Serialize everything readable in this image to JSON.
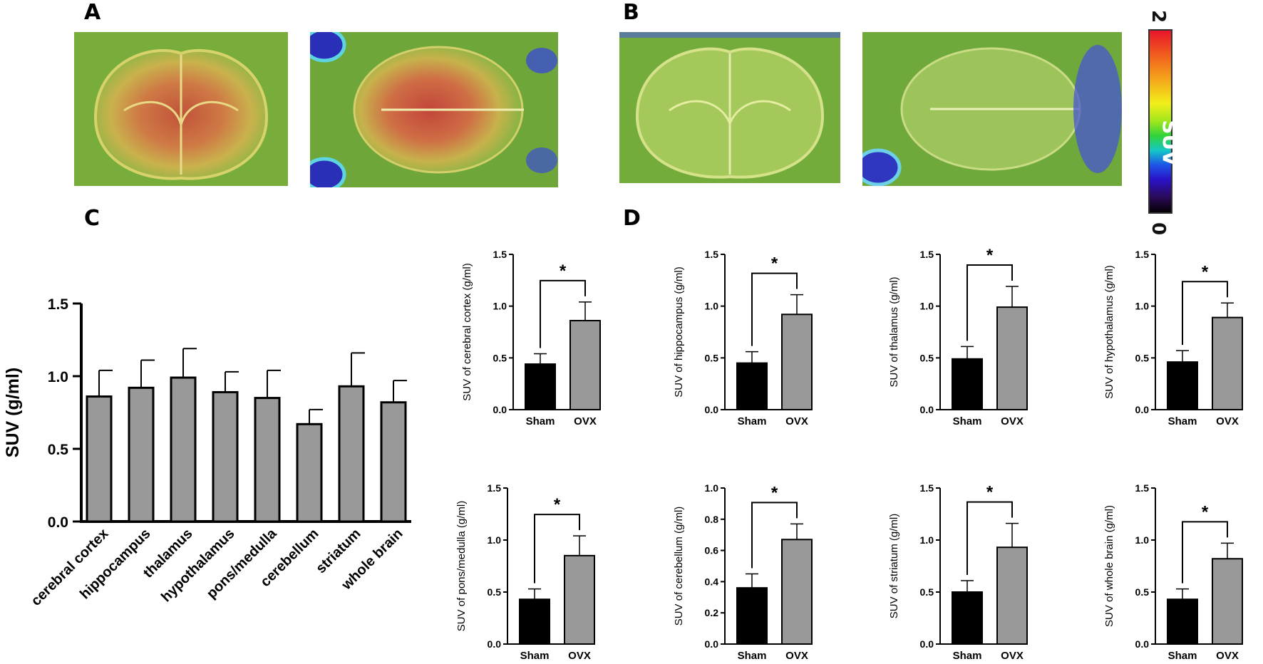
{
  "panels": {
    "a": "A",
    "b": "B",
    "c": "C",
    "d": "D"
  },
  "colorbar": {
    "max_label": "2",
    "min_label": "0",
    "title": "SUV",
    "colors": [
      "#e8152b",
      "#f5a11b",
      "#f3ef1a",
      "#2fd33a",
      "#1d55e6",
      "#2a0a55",
      "#050005"
    ]
  },
  "bar_colors": {
    "sham": "#000000",
    "ovx": "#999999"
  },
  "chart_data": [
    {
      "type": "bar",
      "panel": "C",
      "categories": [
        "cerebral cortex",
        "hippocampus",
        "thalamus",
        "hypothalamus",
        "pons/medulla",
        "cerebellum",
        "striatum",
        "whole brain"
      ],
      "values": [
        0.86,
        0.92,
        0.99,
        0.89,
        0.85,
        0.67,
        0.93,
        0.82
      ],
      "errors": [
        0.18,
        0.19,
        0.2,
        0.14,
        0.19,
        0.1,
        0.23,
        0.15
      ],
      "ylabel": "SUV  (g/ml)",
      "ylim": [
        0,
        1.5
      ],
      "yticks": [
        "0.0",
        "0.5",
        "1.0",
        "1.5"
      ]
    },
    {
      "type": "bar",
      "panel": "D",
      "categories": [
        "Sham",
        "OVX"
      ],
      "values": [
        0.44,
        0.86
      ],
      "errors": [
        0.1,
        0.18
      ],
      "ylabel": "SUV of  cerebral cortex (g/ml)",
      "ylim": [
        0,
        1.5
      ],
      "yticks": [
        "0.0",
        "0.5",
        "1.0",
        "1.5"
      ],
      "significance": "*"
    },
    {
      "type": "bar",
      "panel": "D",
      "categories": [
        "Sham",
        "OVX"
      ],
      "values": [
        0.45,
        0.92
      ],
      "errors": [
        0.11,
        0.19
      ],
      "ylabel": "SUV of  hippocampus (g/ml)",
      "ylim": [
        0,
        1.5
      ],
      "yticks": [
        "0.0",
        "0.5",
        "1.0",
        "1.5"
      ],
      "significance": "*"
    },
    {
      "type": "bar",
      "panel": "D",
      "categories": [
        "Sham",
        "OVX"
      ],
      "values": [
        0.49,
        0.99
      ],
      "errors": [
        0.12,
        0.2
      ],
      "ylabel": "SUV of  thalamus (g/ml)",
      "ylim": [
        0,
        1.5
      ],
      "yticks": [
        "0.0",
        "0.5",
        "1.0",
        "1.5"
      ],
      "significance": "*"
    },
    {
      "type": "bar",
      "panel": "D",
      "categories": [
        "Sham",
        "OVX"
      ],
      "values": [
        0.46,
        0.89
      ],
      "errors": [
        0.11,
        0.14
      ],
      "ylabel": "SUV of  hypothalamus (g/ml)",
      "ylim": [
        0,
        1.5
      ],
      "yticks": [
        "0.0",
        "0.5",
        "1.0",
        "1.5"
      ],
      "significance": "*"
    },
    {
      "type": "bar",
      "panel": "D",
      "categories": [
        "Sham",
        "OVX"
      ],
      "values": [
        0.43,
        0.85
      ],
      "errors": [
        0.1,
        0.19
      ],
      "ylabel": "SUV of  pons/medulla (g/ml)",
      "ylim": [
        0,
        1.5
      ],
      "yticks": [
        "0.0",
        "0.5",
        "1.0",
        "1.5"
      ],
      "significance": "*"
    },
    {
      "type": "bar",
      "panel": "D",
      "categories": [
        "Sham",
        "OVX"
      ],
      "values": [
        0.36,
        0.67
      ],
      "errors": [
        0.09,
        0.1
      ],
      "ylabel": "SUV of  cerebellum (g/ml)",
      "ylim": [
        0,
        1.0
      ],
      "yticks": [
        "0.0",
        "0.2",
        "0.4",
        "0.6",
        "0.8",
        "1.0"
      ],
      "significance": "*"
    },
    {
      "type": "bar",
      "panel": "D",
      "categories": [
        "Sham",
        "OVX"
      ],
      "values": [
        0.5,
        0.93
      ],
      "errors": [
        0.11,
        0.23
      ],
      "ylabel": "SUV of  striatum (g/ml)",
      "ylim": [
        0,
        1.5
      ],
      "yticks": [
        "0.0",
        "0.5",
        "1.0",
        "1.5"
      ],
      "significance": "*"
    },
    {
      "type": "bar",
      "panel": "D",
      "categories": [
        "Sham",
        "OVX"
      ],
      "values": [
        0.43,
        0.82
      ],
      "errors": [
        0.1,
        0.15
      ],
      "ylabel": "SUV of whole brain (g/ml)",
      "ylim": [
        0,
        1.5
      ],
      "yticks": [
        "0.0",
        "0.5",
        "1.0",
        "1.5"
      ],
      "significance": "*"
    }
  ]
}
